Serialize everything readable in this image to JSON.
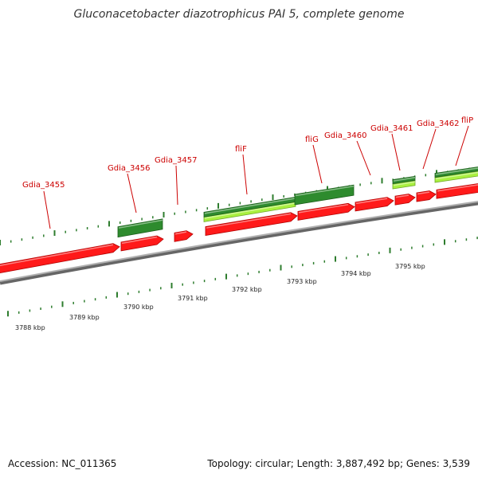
{
  "title": "Gluconacetobacter diazotrophicus PAI 5, complete genome",
  "footer": {
    "accession": "Accession: NC_011365",
    "summary": "Topology: circular; Length: 3,887,492 bp; Genes: 3,539"
  },
  "colors": {
    "cds": "#ff1a1a",
    "cds_dark": "#b30000",
    "green": "#2e8b2e",
    "green_dark": "#1c5e1c",
    "lime": "#aaf040",
    "lime_dark": "#6fa82a",
    "backbone": "#888888",
    "tick": "#2e7d2e",
    "label": "#cc0000"
  },
  "gene_labels": [
    "Gdia_3455",
    "Gdia_3456",
    "Gdia_3457",
    "fliF",
    "fliG",
    "Gdia_3460",
    "Gdia_3461",
    "Gdia_3462",
    "fliP"
  ],
  "kbp_labels": [
    "3788 kbp",
    "3789 kbp",
    "3790 kbp",
    "3791 kbp",
    "3792 kbp",
    "3793 kbp",
    "3794 kbp",
    "3795 kbp"
  ]
}
